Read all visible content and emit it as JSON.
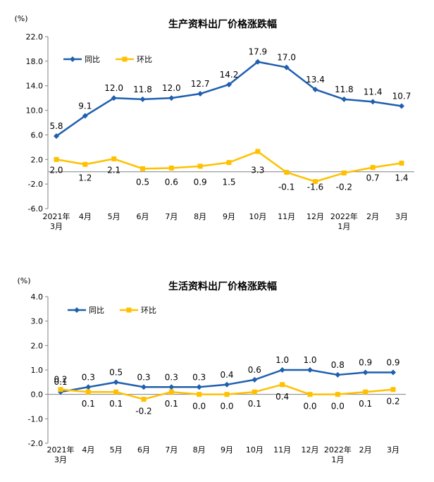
{
  "colors": {
    "yoy": "#1F5FAE",
    "mom": "#FFC000"
  },
  "legend": {
    "yoy": "同比",
    "mom": "环比"
  },
  "chart_data": [
    {
      "type": "line",
      "title": "生产资料出厂价格涨跌幅",
      "unit": "(%)",
      "categories": [
        [
          "2021年",
          "3月"
        ],
        [
          "4月"
        ],
        [
          "5月"
        ],
        [
          "6月"
        ],
        [
          "7月"
        ],
        [
          "8月"
        ],
        [
          "9月"
        ],
        [
          "10月"
        ],
        [
          "11月"
        ],
        [
          "12月"
        ],
        [
          "2022年",
          "1月"
        ],
        [
          "2月"
        ],
        [
          "3月"
        ]
      ],
      "yticks": [
        "22.0",
        "18.0",
        "14.0",
        "10.0",
        "6.0",
        "2.0",
        "-2.0",
        "-6.0"
      ],
      "ylim": [
        -6,
        22
      ],
      "grid": false,
      "legend_position": "top-left",
      "series": [
        {
          "name": "同比",
          "key": "yoy",
          "marker": "diamond",
          "values": [
            5.8,
            9.1,
            12.0,
            11.8,
            12.0,
            12.7,
            14.2,
            17.9,
            17.0,
            13.4,
            11.8,
            11.4,
            10.7
          ],
          "labels": [
            "5.8",
            "9.1",
            "12.0",
            "11.8",
            "12.0",
            "12.7",
            "14.2",
            "17.9",
            "17.0",
            "13.4",
            "11.8",
            "11.4",
            "10.7"
          ]
        },
        {
          "name": "环比",
          "key": "mom",
          "marker": "square",
          "values": [
            2.0,
            1.2,
            2.1,
            0.5,
            0.6,
            0.9,
            1.5,
            3.3,
            -0.1,
            -1.6,
            -0.2,
            0.7,
            1.4
          ],
          "labels": [
            "2.0",
            "1.2",
            "2.1",
            "0.5",
            "0.6",
            "0.9",
            "1.5",
            "3.3",
            "-0.1",
            "-1.6",
            "-0.2",
            "0.7",
            "1.4"
          ]
        }
      ]
    },
    {
      "type": "line",
      "title": "生活资料出厂价格涨跌幅",
      "unit": "(%)",
      "categories": [
        [
          "2021年",
          "3月"
        ],
        [
          "4月"
        ],
        [
          "5月"
        ],
        [
          "6月"
        ],
        [
          "7月"
        ],
        [
          "8月"
        ],
        [
          "9月"
        ],
        [
          "10月"
        ],
        [
          "11月"
        ],
        [
          "12月"
        ],
        [
          "2022年",
          "1月"
        ],
        [
          "2月"
        ],
        [
          "3月"
        ]
      ],
      "yticks": [
        "4.0",
        "3.0",
        "2.0",
        "1.0",
        "0.0",
        "-1.0",
        "-2.0"
      ],
      "ylim": [
        -2,
        4
      ],
      "grid": false,
      "legend_position": "top-left",
      "series": [
        {
          "name": "同比",
          "key": "yoy",
          "marker": "diamond",
          "values": [
            0.1,
            0.3,
            0.5,
            0.3,
            0.3,
            0.3,
            0.4,
            0.6,
            1.0,
            1.0,
            0.8,
            0.9,
            0.9
          ],
          "labels": [
            "0.1",
            "0.3",
            "0.5",
            "0.3",
            "0.3",
            "0.3",
            "0.4",
            "0.6",
            "1.0",
            "1.0",
            "0.8",
            "0.9",
            "0.9"
          ]
        },
        {
          "name": "环比",
          "key": "mom",
          "marker": "square",
          "values": [
            0.2,
            0.1,
            0.1,
            -0.2,
            0.1,
            0.0,
            0.0,
            0.1,
            0.4,
            0.0,
            0.0,
            0.1,
            0.2
          ],
          "labels": [
            "0.2",
            "0.1",
            "0.1",
            "-0.2",
            "0.1",
            "0.0",
            "0.0",
            "0.1",
            "0.4",
            "0.0",
            "0.0",
            "0.1",
            "0.2"
          ]
        }
      ]
    }
  ]
}
